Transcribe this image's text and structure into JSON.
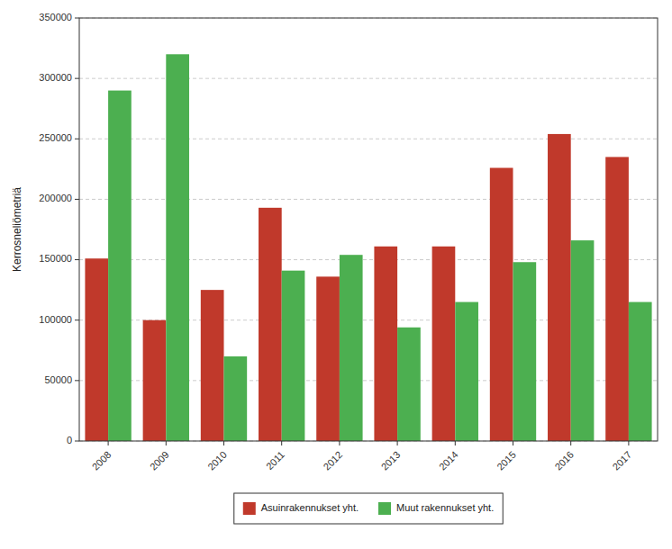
{
  "chart_data": {
    "type": "bar",
    "y_label": "Kerrosneliömetriä",
    "categories": [
      "2008",
      "2009",
      "2010",
      "2011",
      "2012",
      "2013",
      "2014",
      "2015",
      "2016",
      "2017"
    ],
    "series": [
      {
        "name": "Asuinrakennukset yht.",
        "color": "#c0392b",
        "values": [
          151000,
          100000,
          125000,
          193000,
          136000,
          161000,
          161000,
          226000,
          254000,
          235000
        ]
      },
      {
        "name": "Muut rakennukset yht.",
        "color": "#4caf50",
        "values": [
          290000,
          320000,
          70000,
          141000,
          154000,
          94000,
          115000,
          148000,
          166000,
          115000
        ]
      }
    ],
    "ylim": [
      0,
      350000
    ],
    "yticks": [
      0,
      50000,
      100000,
      150000,
      200000,
      250000,
      300000,
      350000
    ],
    "grid": true,
    "legend": "bottom"
  }
}
